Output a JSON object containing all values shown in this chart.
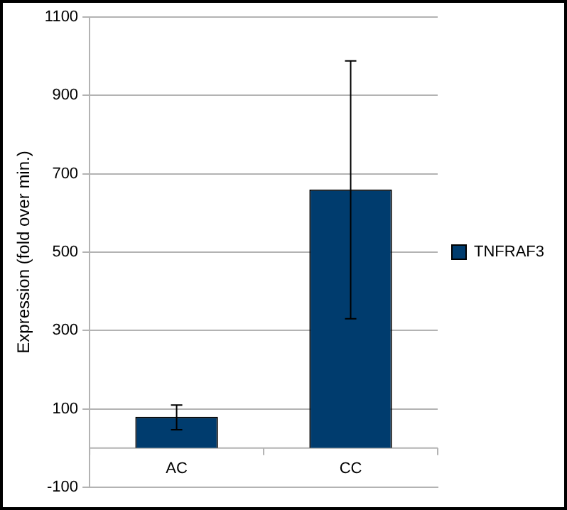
{
  "chart_data": {
    "type": "bar",
    "ylabel": "Expression (fold over min.)",
    "categories": [
      "AC",
      "CC"
    ],
    "series": [
      {
        "name": "TNFRAF3",
        "color": "#003c6e",
        "values": [
          80,
          660
        ],
        "errors": [
          [
            47,
            110
          ],
          [
            330,
            988
          ]
        ]
      }
    ],
    "ylim": [
      -100,
      1100
    ],
    "yticks": [
      -100,
      100,
      300,
      500,
      700,
      900,
      1100
    ],
    "grid": "y",
    "legend": "right"
  }
}
